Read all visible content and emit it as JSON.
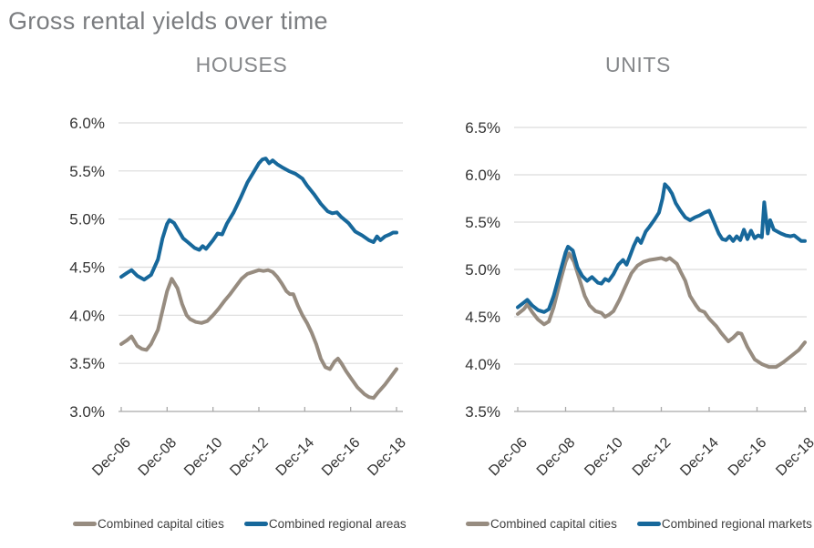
{
  "page_title": "Gross rental yields over time",
  "colors": {
    "capital_cities": "#978C80",
    "regional_blue": "#17689B",
    "gridline": "#DCDCDC",
    "axis_line": "#A9A9A9",
    "tick_text": "#333333",
    "title_text": "#7B7D80"
  },
  "chart_data": [
    {
      "type": "line",
      "title": "HOUSES",
      "x_unit": "years since Dec-2006",
      "x_tick_labels": [
        "Dec-06",
        "Dec-08",
        "Dec-10",
        "Dec-12",
        "Dec-14",
        "Dec-16",
        "Dec-18"
      ],
      "x_tick_positions": [
        0,
        2,
        4,
        6,
        8,
        10,
        12
      ],
      "ylim": [
        3.0,
        6.0
      ],
      "y_tick_labels": [
        "6.0%",
        "5.5%",
        "5.0%",
        "4.5%",
        "4.0%",
        "3.5%",
        "3.0%"
      ],
      "grid": true,
      "legend_position": "bottom",
      "series": [
        {
          "name": "Combined capital cities",
          "color": "#978C80",
          "x": [
            0,
            0.25,
            0.45,
            0.7,
            0.9,
            1.1,
            1.3,
            1.6,
            1.8,
            2.0,
            2.2,
            2.45,
            2.65,
            2.85,
            3.0,
            3.25,
            3.5,
            3.75,
            4.0,
            4.25,
            4.5,
            4.75,
            5.0,
            5.25,
            5.5,
            5.75,
            6.0,
            6.2,
            6.4,
            6.6,
            6.8,
            7.0,
            7.2,
            7.35,
            7.5,
            7.7,
            7.9,
            8.1,
            8.3,
            8.5,
            8.7,
            8.9,
            9.1,
            9.3,
            9.45,
            9.6,
            9.8,
            10.0,
            10.3,
            10.6,
            10.8,
            11.0,
            11.2,
            11.5,
            11.75,
            12.0
          ],
          "y": [
            3.7,
            3.74,
            3.78,
            3.68,
            3.65,
            3.64,
            3.7,
            3.85,
            4.05,
            4.25,
            4.38,
            4.28,
            4.12,
            4.0,
            3.96,
            3.93,
            3.92,
            3.94,
            4.0,
            4.07,
            4.15,
            4.22,
            4.3,
            4.38,
            4.43,
            4.45,
            4.47,
            4.46,
            4.47,
            4.45,
            4.4,
            4.33,
            4.25,
            4.22,
            4.22,
            4.1,
            4.0,
            3.92,
            3.82,
            3.7,
            3.55,
            3.46,
            3.44,
            3.52,
            3.55,
            3.5,
            3.42,
            3.35,
            3.25,
            3.18,
            3.15,
            3.14,
            3.2,
            3.28,
            3.36,
            3.44
          ]
        },
        {
          "name": "Combined regional areas",
          "color": "#17689B",
          "x": [
            0,
            0.25,
            0.45,
            0.7,
            1.0,
            1.3,
            1.6,
            1.8,
            2.0,
            2.1,
            2.3,
            2.5,
            2.7,
            2.9,
            3.2,
            3.4,
            3.55,
            3.7,
            4.0,
            4.2,
            4.4,
            4.6,
            4.9,
            5.2,
            5.5,
            5.8,
            6.0,
            6.15,
            6.3,
            6.45,
            6.6,
            6.8,
            7.0,
            7.3,
            7.6,
            7.9,
            8.1,
            8.4,
            8.7,
            9.0,
            9.2,
            9.4,
            9.6,
            9.9,
            10.2,
            10.5,
            10.8,
            11.0,
            11.15,
            11.3,
            11.5,
            11.7,
            11.85,
            12.0
          ],
          "y": [
            4.4,
            4.44,
            4.47,
            4.41,
            4.37,
            4.42,
            4.58,
            4.8,
            4.95,
            4.99,
            4.96,
            4.88,
            4.8,
            4.76,
            4.7,
            4.68,
            4.72,
            4.69,
            4.78,
            4.85,
            4.84,
            4.95,
            5.07,
            5.22,
            5.38,
            5.5,
            5.58,
            5.62,
            5.63,
            5.58,
            5.61,
            5.57,
            5.54,
            5.5,
            5.47,
            5.42,
            5.35,
            5.26,
            5.16,
            5.08,
            5.06,
            5.07,
            5.02,
            4.96,
            4.87,
            4.83,
            4.78,
            4.76,
            4.82,
            4.78,
            4.82,
            4.84,
            4.86,
            4.86
          ]
        }
      ]
    },
    {
      "type": "line",
      "title": "UNITS",
      "x_unit": "years since Dec-2006",
      "x_tick_labels": [
        "Dec-06",
        "Dec-08",
        "Dec-10",
        "Dec-12",
        "Dec-14",
        "Dec-16",
        "Dec-18"
      ],
      "x_tick_positions": [
        0,
        2,
        4,
        6,
        8,
        10,
        12
      ],
      "ylim": [
        3.5,
        6.5
      ],
      "y_tick_labels": [
        "6.5%",
        "6.0%",
        "5.5%",
        "5.0%",
        "4.5%",
        "4.0%",
        "3.5%"
      ],
      "grid": true,
      "legend_position": "bottom",
      "series": [
        {
          "name": "Combined capital cities",
          "color": "#978C80",
          "x": [
            0,
            0.25,
            0.4,
            0.6,
            0.85,
            1.1,
            1.3,
            1.5,
            1.75,
            2.0,
            2.15,
            2.35,
            2.6,
            2.8,
            3.0,
            3.25,
            3.5,
            3.65,
            3.8,
            4.0,
            4.25,
            4.5,
            4.75,
            5.0,
            5.25,
            5.5,
            5.75,
            6.0,
            6.2,
            6.35,
            6.5,
            6.65,
            6.8,
            7.0,
            7.2,
            7.45,
            7.6,
            7.8,
            8.0,
            8.3,
            8.5,
            8.8,
            9.0,
            9.2,
            9.35,
            9.6,
            9.9,
            10.2,
            10.5,
            10.8,
            11.1,
            11.4,
            11.6,
            11.75,
            12.0
          ],
          "y": [
            4.53,
            4.58,
            4.63,
            4.55,
            4.47,
            4.42,
            4.45,
            4.6,
            4.85,
            5.08,
            5.17,
            5.08,
            4.88,
            4.72,
            4.62,
            4.56,
            4.54,
            4.5,
            4.52,
            4.56,
            4.68,
            4.82,
            4.96,
            5.04,
            5.08,
            5.1,
            5.11,
            5.12,
            5.1,
            5.12,
            5.09,
            5.06,
            4.98,
            4.88,
            4.72,
            4.62,
            4.57,
            4.55,
            4.48,
            4.4,
            4.33,
            4.24,
            4.28,
            4.33,
            4.32,
            4.18,
            4.05,
            4.0,
            3.97,
            3.97,
            4.02,
            4.08,
            4.12,
            4.15,
            4.23
          ]
        },
        {
          "name": "Combined regional markets",
          "color": "#17689B",
          "x": [
            0,
            0.25,
            0.4,
            0.6,
            0.85,
            1.1,
            1.3,
            1.5,
            1.75,
            2.0,
            2.1,
            2.3,
            2.5,
            2.7,
            2.9,
            3.1,
            3.35,
            3.5,
            3.65,
            3.8,
            4.0,
            4.2,
            4.4,
            4.55,
            4.7,
            4.85,
            5.0,
            5.15,
            5.35,
            5.5,
            5.7,
            5.9,
            6.05,
            6.15,
            6.3,
            6.45,
            6.6,
            6.8,
            7.0,
            7.2,
            7.4,
            7.6,
            7.8,
            8.0,
            8.2,
            8.4,
            8.55,
            8.7,
            8.85,
            9.0,
            9.15,
            9.3,
            9.45,
            9.6,
            9.75,
            9.9,
            10.05,
            10.2,
            10.3,
            10.45,
            10.55,
            10.7,
            10.85,
            11.0,
            11.2,
            11.4,
            11.55,
            11.7,
            11.85,
            12.0
          ],
          "y": [
            4.6,
            4.65,
            4.68,
            4.62,
            4.57,
            4.55,
            4.58,
            4.72,
            4.95,
            5.18,
            5.24,
            5.2,
            5.02,
            4.93,
            4.88,
            4.92,
            4.86,
            4.85,
            4.9,
            4.88,
            4.95,
            5.05,
            5.1,
            5.05,
            5.15,
            5.25,
            5.33,
            5.28,
            5.4,
            5.45,
            5.52,
            5.6,
            5.75,
            5.9,
            5.86,
            5.8,
            5.7,
            5.62,
            5.55,
            5.52,
            5.55,
            5.57,
            5.6,
            5.62,
            5.5,
            5.38,
            5.32,
            5.31,
            5.35,
            5.3,
            5.35,
            5.31,
            5.42,
            5.32,
            5.41,
            5.33,
            5.36,
            5.34,
            5.71,
            5.38,
            5.52,
            5.42,
            5.4,
            5.38,
            5.36,
            5.35,
            5.36,
            5.33,
            5.3,
            5.3
          ]
        }
      ]
    }
  ]
}
